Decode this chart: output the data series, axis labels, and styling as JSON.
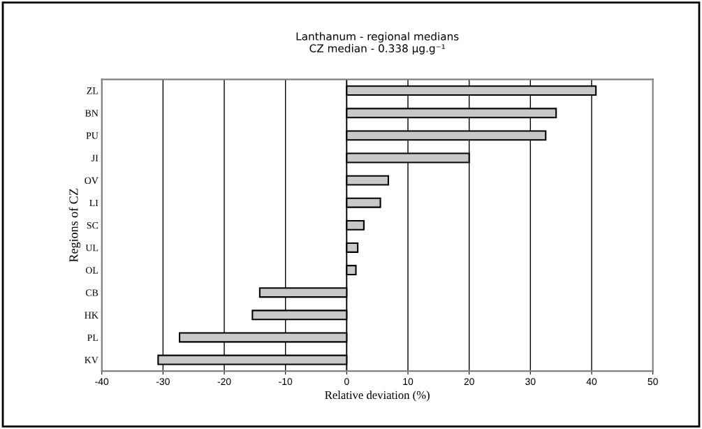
{
  "chart_data": {
    "type": "bar",
    "orientation": "horizontal",
    "title": "Lanthanum - regional medians\nCZ median - 0.338 μg.g⁻¹",
    "xlabel": "Relative deviation (%)",
    "ylabel": "Regions of CZ",
    "categories": [
      "ZL",
      "BN",
      "PU",
      "JI",
      "OV",
      "LI",
      "SC",
      "UL",
      "OL",
      "CB",
      "HK",
      "PL",
      "KV"
    ],
    "values": [
      40.7,
      34.2,
      32.5,
      20.0,
      6.8,
      5.5,
      2.8,
      1.8,
      1.5,
      -14.2,
      -15.4,
      -27.3,
      -30.8
    ],
    "color": "#c8c8c8",
    "xlim": [
      -40,
      50
    ],
    "xticks": [
      -40,
      -30,
      -20,
      -10,
      0,
      10,
      20,
      30,
      40,
      50
    ],
    "grid": "x"
  }
}
